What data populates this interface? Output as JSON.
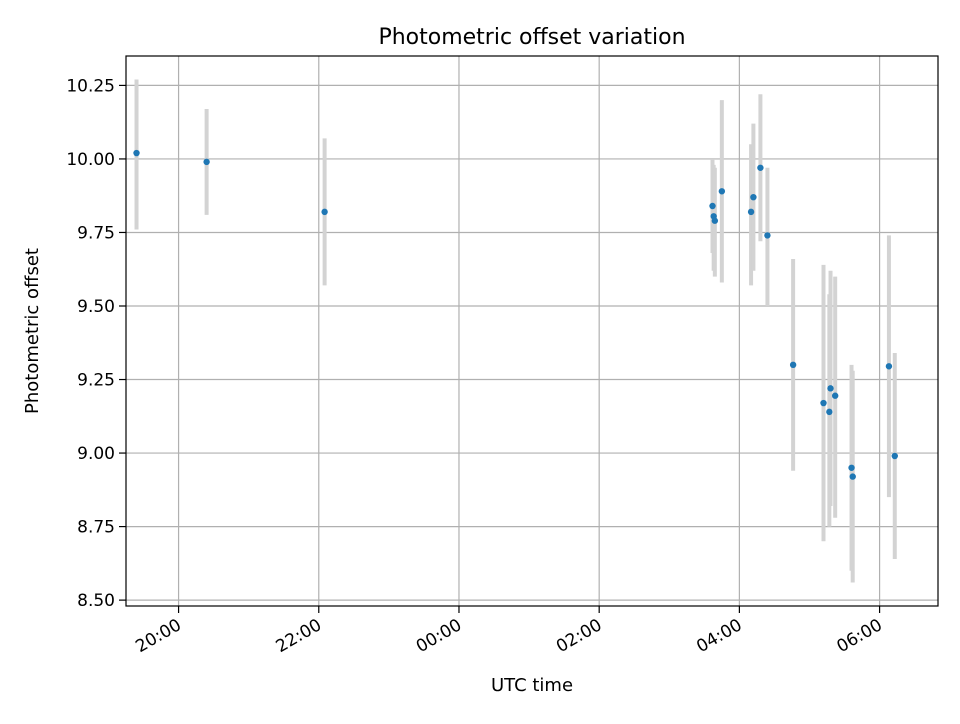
{
  "chart_data": {
    "type": "scatter",
    "title": "Photometric offset variation",
    "xlabel": "UTC time",
    "ylabel": "Photometric offset",
    "grid": true,
    "x_axis": {
      "kind": "time",
      "range": [
        "19:15",
        "06:50"
      ],
      "ticks": [
        {
          "value": "20:00",
          "label": "20:00"
        },
        {
          "value": "22:00",
          "label": "22:00"
        },
        {
          "value": "00:00",
          "label": "00:00"
        },
        {
          "value": "02:00",
          "label": "02:00"
        },
        {
          "value": "04:00",
          "label": "04:00"
        },
        {
          "value": "06:00",
          "label": "06:00"
        }
      ]
    },
    "y_axis": {
      "range": [
        8.48,
        10.35
      ],
      "ticks": [
        {
          "value": 8.5,
          "label": "8.50"
        },
        {
          "value": 8.75,
          "label": "8.75"
        },
        {
          "value": 9.0,
          "label": "9.00"
        },
        {
          "value": 9.25,
          "label": "9.25"
        },
        {
          "value": 9.5,
          "label": "9.50"
        },
        {
          "value": 9.75,
          "label": "9.75"
        },
        {
          "value": 10.0,
          "label": "10.00"
        },
        {
          "value": 10.25,
          "label": "10.25"
        }
      ]
    },
    "colors": {
      "point": "#1f77b4",
      "error_bar": "#d3d3d3",
      "grid": "#b0b0b0",
      "axes": "#000000"
    },
    "points": [
      {
        "x": "19:24",
        "y": 10.02,
        "y_low": 9.76,
        "y_high": 10.27
      },
      {
        "x": "20:24",
        "y": 9.99,
        "y_low": 9.81,
        "y_high": 10.17
      },
      {
        "x": "22:05",
        "y": 9.82,
        "y_low": 9.57,
        "y_high": 10.07
      },
      {
        "x": "03:37",
        "y": 9.84,
        "y_low": 9.68,
        "y_high": 10.0
      },
      {
        "x": "03:38",
        "y": 9.805,
        "y_low": 9.62,
        "y_high": 9.98
      },
      {
        "x": "03:39",
        "y": 9.79,
        "y_low": 9.6,
        "y_high": 9.97
      },
      {
        "x": "03:45",
        "y": 9.89,
        "y_low": 9.58,
        "y_high": 10.2
      },
      {
        "x": "04:10",
        "y": 9.82,
        "y_low": 9.57,
        "y_high": 10.05
      },
      {
        "x": "04:12",
        "y": 9.87,
        "y_low": 9.62,
        "y_high": 10.12
      },
      {
        "x": "04:18",
        "y": 9.97,
        "y_low": 9.72,
        "y_high": 10.22
      },
      {
        "x": "04:24",
        "y": 9.74,
        "y_low": 9.5,
        "y_high": 9.97
      },
      {
        "x": "04:46",
        "y": 9.3,
        "y_low": 8.94,
        "y_high": 9.66
      },
      {
        "x": "05:12",
        "y": 9.17,
        "y_low": 8.7,
        "y_high": 9.64
      },
      {
        "x": "05:17",
        "y": 9.14,
        "y_low": 8.75,
        "y_high": 9.54
      },
      {
        "x": "05:18",
        "y": 9.22,
        "y_low": 8.82,
        "y_high": 9.62
      },
      {
        "x": "05:22",
        "y": 9.195,
        "y_low": 8.78,
        "y_high": 9.6
      },
      {
        "x": "05:36",
        "y": 8.95,
        "y_low": 8.6,
        "y_high": 9.3
      },
      {
        "x": "05:37",
        "y": 8.92,
        "y_low": 8.56,
        "y_high": 9.28
      },
      {
        "x": "06:08",
        "y": 9.295,
        "y_low": 8.85,
        "y_high": 9.74
      },
      {
        "x": "06:13",
        "y": 8.99,
        "y_low": 8.64,
        "y_high": 9.34
      }
    ]
  }
}
